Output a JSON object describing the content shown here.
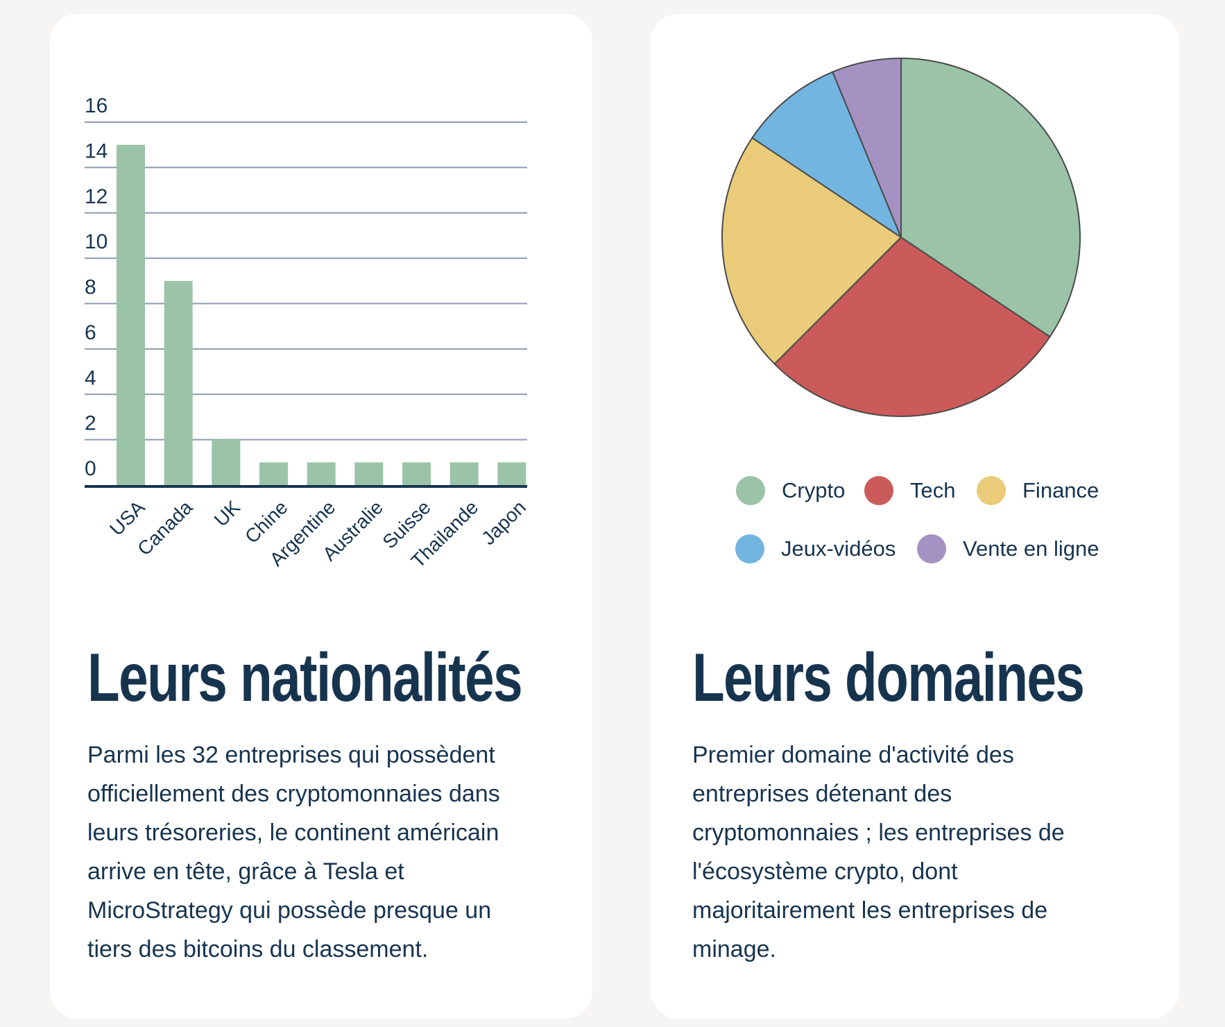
{
  "chart_data": [
    {
      "type": "bar",
      "categories": [
        "USA",
        "Canada",
        "UK",
        "Chine",
        "Argentine",
        "Australie",
        "Suisse",
        "Thailande",
        "Japon"
      ],
      "values": [
        15,
        9,
        2,
        1,
        1,
        1,
        1,
        1,
        1
      ],
      "ylim": [
        0,
        16
      ],
      "yticks": [
        "0",
        "2",
        "4",
        "6",
        "8",
        "10",
        "12",
        "14",
        "16"
      ],
      "grid": true,
      "color": "#9bc3a8"
    },
    {
      "type": "pie",
      "labels": [
        "Crypto",
        "Tech",
        "Finance",
        "Jeux-vidéos",
        "Vente en ligne"
      ],
      "values": [
        11,
        9,
        7,
        3,
        2
      ],
      "colors": [
        "#9bc3a8",
        "#cb5b5a",
        "#eacb79",
        "#72b5e0",
        "#a692c2"
      ],
      "legend": "bottom"
    }
  ],
  "left": {
    "title": "Leurs nationalités",
    "text": "Parmi les 32 entreprises qui possèdent officiellement des cryptomonnaies dans leurs trésoreries, le continent américain arrive en tête, grâce à Tesla et MicroStrategy qui possède presque un tiers des bitcoins du classement."
  },
  "right": {
    "title": "Leurs domaines",
    "text": "Premier domaine d'activité des entreprises détenant des cryptomonnaies ; les entreprises de l'écosystème crypto, dont majoritairement les entreprises de minage."
  }
}
